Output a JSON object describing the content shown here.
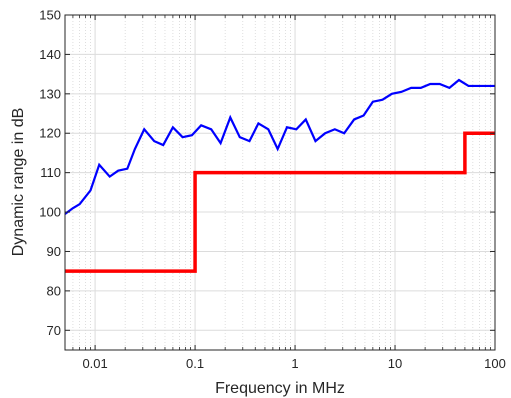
{
  "chart_data": {
    "type": "line",
    "title": "",
    "xlabel": "Frequency in MHz",
    "ylabel": "Dynamic range in dB",
    "xscale": "log",
    "xlim": [
      0.005,
      100
    ],
    "ylim": [
      65,
      150
    ],
    "grid": true,
    "minor_grid": true,
    "xticks": [
      0.01,
      0.1,
      1,
      10,
      100
    ],
    "xtick_labels": [
      "0.01",
      "0.1",
      "1",
      "10",
      "100"
    ],
    "yticks": [
      70,
      80,
      90,
      100,
      110,
      120,
      130,
      140,
      150
    ],
    "ytick_labels": [
      "70",
      "80",
      "90",
      "100",
      "110",
      "120",
      "130",
      "140",
      "150"
    ],
    "series": [
      {
        "color": "#0000ff",
        "style": "line",
        "x": [
          0.005,
          0.006,
          0.007,
          0.009,
          0.011,
          0.014,
          0.017,
          0.021,
          0.025,
          0.031,
          0.039,
          0.048,
          0.06,
          0.075,
          0.093,
          0.115,
          0.145,
          0.18,
          0.225,
          0.28,
          0.35,
          0.43,
          0.54,
          0.67,
          0.83,
          1.03,
          1.28,
          1.6,
          2.0,
          2.5,
          3.1,
          3.9,
          4.85,
          6.0,
          7.5,
          9.3,
          11.6,
          14.5,
          18.1,
          22.5,
          28,
          35,
          43.6,
          54.3,
          67.6,
          84.2,
          100
        ],
        "y": [
          99.5,
          101.0,
          102.0,
          105.5,
          112.0,
          109.0,
          110.5,
          111.0,
          116.0,
          121.0,
          118.0,
          117.0,
          121.5,
          119.0,
          119.5,
          122.0,
          121.0,
          117.5,
          124.0,
          119.0,
          118.0,
          122.5,
          121.0,
          116.0,
          121.5,
          121.0,
          123.5,
          118.0,
          120.0,
          121.0,
          120.0,
          123.5,
          124.5,
          128.0,
          128.5,
          130.0,
          130.5,
          131.5,
          131.5,
          132.5,
          132.5,
          131.5,
          133.5,
          132.0,
          132.0,
          132.0,
          132.0
        ]
      },
      {
        "color": "#ff0000",
        "style": "step",
        "x": [
          0.005,
          0.1,
          0.1,
          50,
          50,
          100
        ],
        "y": [
          85,
          85,
          110,
          110,
          120,
          120
        ]
      }
    ]
  }
}
